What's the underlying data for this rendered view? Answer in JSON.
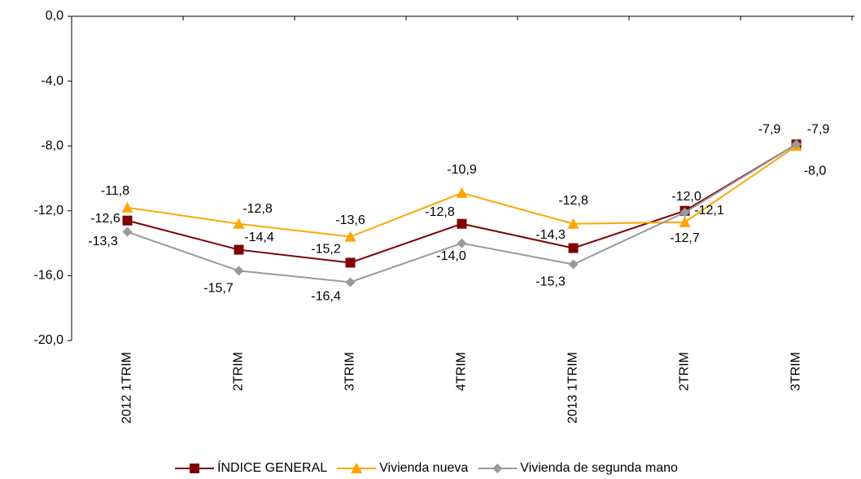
{
  "chart_data": {
    "type": "line",
    "categories": [
      "2012 1TRIM",
      "2TRIM",
      "3TRIM",
      "4TRIM",
      "2013 1TRIM",
      "2TRIM",
      "3TRIM"
    ],
    "series": [
      {
        "name": "ÍNDICE GENERAL",
        "color": "#800000",
        "marker": "square",
        "values": [
          -12.6,
          -14.4,
          -15.2,
          -12.8,
          -14.3,
          -12.0,
          -7.9
        ],
        "value_labels": [
          "-12,6",
          "-14,4",
          "-15,2",
          "-12,8",
          "-14,3",
          "-12,0",
          "-7,9"
        ]
      },
      {
        "name": "Vivienda nueva",
        "color": "#FFA500",
        "marker": "triangle",
        "values": [
          -11.8,
          -12.8,
          -13.6,
          -10.9,
          -12.8,
          -12.7,
          -8.0
        ],
        "value_labels": [
          "-11,8",
          "-12,8",
          "-13,6",
          "-10,9",
          "-12,8",
          "-12,7",
          "-8,0"
        ]
      },
      {
        "name": "Vivienda de segunda mano",
        "color": "#999999",
        "marker": "diamond",
        "values": [
          -13.3,
          -15.7,
          -16.4,
          -14.0,
          -15.3,
          -12.1,
          -7.9
        ],
        "value_labels": [
          "-13,3",
          "-15,7",
          "-16,4",
          "-14,0",
          "-15,3",
          "-12,1",
          "-7,9"
        ]
      }
    ],
    "ylim": [
      -20,
      0
    ],
    "yticks": [
      {
        "value": 0,
        "label": "0,0"
      },
      {
        "value": -4,
        "label": "-4,0"
      },
      {
        "value": -8,
        "label": "-8,0"
      },
      {
        "value": -12,
        "label": "-12,0"
      },
      {
        "value": -16,
        "label": "-16,0"
      },
      {
        "value": -20,
        "label": "-20,0"
      }
    ],
    "legend": "bottom"
  }
}
